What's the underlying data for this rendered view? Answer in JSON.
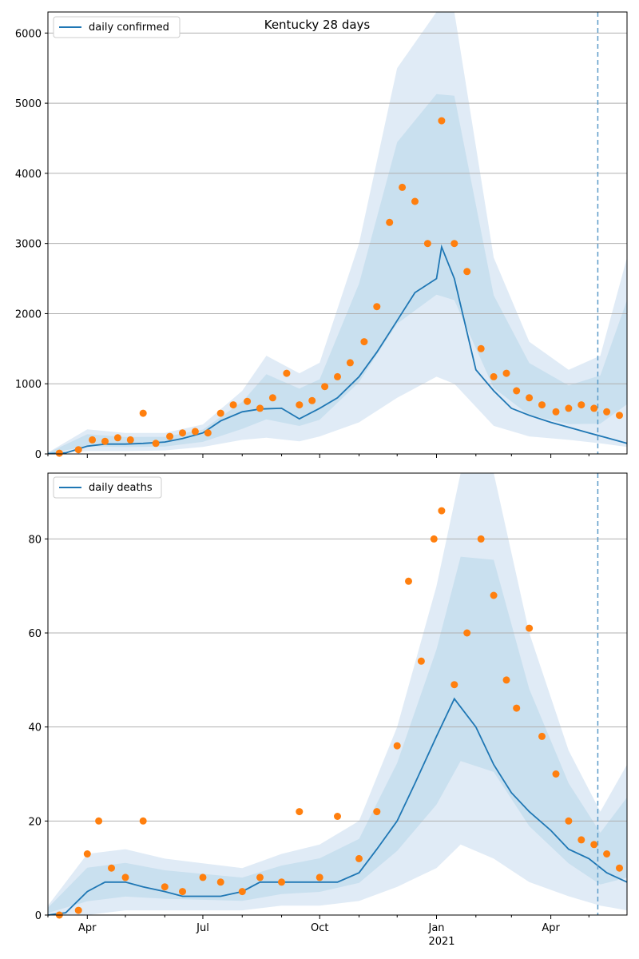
{
  "chart_data": [
    {
      "type": "line",
      "title": "Kentucky 28 days",
      "xlabel": "",
      "ylabel": "",
      "ylim": [
        0,
        6300
      ],
      "yticks": [
        0,
        1000,
        2000,
        3000,
        4000,
        5000,
        6000
      ],
      "grid": "y",
      "legend_position": "top-left",
      "x_range": [
        "2020-03-01",
        "2021-05-31"
      ],
      "forecast_start": "2021-05-08",
      "series": [
        {
          "name": "daily confirmed",
          "kind": "line",
          "color": "#1f77b4",
          "x": [
            "2020-03-01",
            "2020-03-15",
            "2020-04-01",
            "2020-04-15",
            "2020-05-01",
            "2020-05-15",
            "2020-06-01",
            "2020-06-15",
            "2020-07-01",
            "2020-07-15",
            "2020-08-01",
            "2020-08-15",
            "2020-09-01",
            "2020-09-15",
            "2020-10-01",
            "2020-10-15",
            "2020-11-01",
            "2020-11-15",
            "2020-12-01",
            "2020-12-15",
            "2021-01-01",
            "2021-01-05",
            "2021-01-15",
            "2021-02-01",
            "2021-02-15",
            "2021-03-01",
            "2021-03-15",
            "2021-04-01",
            "2021-04-15",
            "2021-05-01",
            "2021-05-15",
            "2021-05-31"
          ],
          "values": [
            5,
            15,
            110,
            140,
            140,
            150,
            170,
            220,
            300,
            470,
            600,
            640,
            650,
            500,
            650,
            800,
            1100,
            1450,
            1900,
            2300,
            2500,
            2950,
            2500,
            1200,
            900,
            650,
            550,
            450,
            380,
            300,
            230,
            150
          ]
        },
        {
          "name": "",
          "kind": "band",
          "color": "#c6dbef",
          "x": [
            "2020-03-01",
            "2020-04-01",
            "2020-05-01",
            "2020-06-01",
            "2020-07-01",
            "2020-08-01",
            "2020-08-20",
            "2020-09-15",
            "2020-10-01",
            "2020-11-01",
            "2020-12-01",
            "2021-01-01",
            "2021-01-15",
            "2021-02-15",
            "2021-03-15",
            "2021-04-15",
            "2021-05-10",
            "2021-05-31"
          ],
          "low": [
            0,
            40,
            40,
            50,
            100,
            200,
            230,
            180,
            250,
            450,
            800,
            1100,
            1000,
            400,
            250,
            200,
            150,
            100
          ],
          "high": [
            20,
            350,
            300,
            300,
            420,
            900,
            1400,
            1150,
            1300,
            3000,
            5500,
            6300,
            6300,
            2800,
            1600,
            1200,
            1400,
            2800
          ]
        }
      ],
      "observed": {
        "name": "",
        "color": "#ff7f0e",
        "x": [
          "2020-03-10",
          "2020-03-25",
          "2020-04-05",
          "2020-04-15",
          "2020-04-25",
          "2020-05-05",
          "2020-05-15",
          "2020-05-25",
          "2020-06-05",
          "2020-06-15",
          "2020-06-25",
          "2020-07-05",
          "2020-07-15",
          "2020-07-25",
          "2020-08-05",
          "2020-08-15",
          "2020-08-25",
          "2020-09-05",
          "2020-09-15",
          "2020-09-25",
          "2020-10-05",
          "2020-10-15",
          "2020-10-25",
          "2020-11-05",
          "2020-11-15",
          "2020-11-25",
          "2020-12-05",
          "2020-12-15",
          "2020-12-25",
          "2021-01-05",
          "2021-01-15",
          "2021-01-25",
          "2021-02-05",
          "2021-02-15",
          "2021-02-25",
          "2021-03-05",
          "2021-03-15",
          "2021-03-25",
          "2021-04-05",
          "2021-04-15",
          "2021-04-25",
          "2021-05-05",
          "2021-05-15",
          "2021-05-25"
        ],
        "values": [
          10,
          60,
          200,
          180,
          230,
          200,
          580,
          150,
          250,
          300,
          320,
          300,
          580,
          700,
          750,
          650,
          800,
          1150,
          700,
          760,
          960,
          1100,
          1300,
          1600,
          2100,
          3300,
          3800,
          3600,
          3000,
          4750,
          3000,
          2600,
          1500,
          1100,
          1150,
          900,
          800,
          700,
          600,
          650,
          700,
          650,
          600,
          550
        ]
      }
    },
    {
      "type": "line",
      "title": "",
      "xlabel": "",
      "ylabel": "",
      "ylim": [
        0,
        94
      ],
      "yticks": [
        0,
        20,
        40,
        60,
        80
      ],
      "grid": "y",
      "legend_position": "top-left",
      "x_range": [
        "2020-03-01",
        "2021-05-31"
      ],
      "xticks": [
        "Apr",
        "Jul",
        "Oct",
        "Jan",
        "Apr"
      ],
      "xtick_dates": [
        "2020-04-01",
        "2020-07-01",
        "2020-10-01",
        "2021-01-01",
        "2021-04-01"
      ],
      "year_label": "2021",
      "forecast_start": "2021-05-08",
      "series": [
        {
          "name": "daily deaths",
          "kind": "line",
          "color": "#1f77b4",
          "x": [
            "2020-03-01",
            "2020-03-15",
            "2020-04-01",
            "2020-04-15",
            "2020-05-01",
            "2020-05-15",
            "2020-06-01",
            "2020-06-15",
            "2020-07-01",
            "2020-07-15",
            "2020-08-01",
            "2020-08-15",
            "2020-09-01",
            "2020-09-15",
            "2020-10-01",
            "2020-10-15",
            "2020-11-01",
            "2020-11-15",
            "2020-12-01",
            "2020-12-15",
            "2021-01-01",
            "2021-01-15",
            "2021-02-01",
            "2021-02-15",
            "2021-03-01",
            "2021-03-15",
            "2021-04-01",
            "2021-04-15",
            "2021-05-01",
            "2021-05-15",
            "2021-05-31"
          ],
          "values": [
            0,
            0.5,
            5,
            7,
            7,
            6,
            5,
            4,
            4,
            4,
            5,
            7,
            7,
            7,
            7,
            7,
            9,
            14,
            20,
            28,
            38,
            46,
            40,
            32,
            26,
            22,
            18,
            14,
            12,
            9,
            7
          ]
        },
        {
          "name": "",
          "kind": "band",
          "color": "#c6dbef",
          "x": [
            "2020-03-01",
            "2020-04-01",
            "2020-05-01",
            "2020-06-01",
            "2020-07-01",
            "2020-08-01",
            "2020-09-01",
            "2020-10-01",
            "2020-11-01",
            "2020-12-01",
            "2021-01-01",
            "2021-01-20",
            "2021-02-15",
            "2021-03-15",
            "2021-04-15",
            "2021-05-10",
            "2021-05-31"
          ],
          "low": [
            0,
            0,
            1,
            1,
            1,
            1,
            2,
            2,
            3,
            6,
            10,
            15,
            12,
            7,
            4,
            2,
            1
          ],
          "high": [
            2,
            13,
            14,
            12,
            11,
            10,
            13,
            15,
            20,
            40,
            70,
            94,
            94,
            60,
            35,
            22,
            32
          ]
        }
      ],
      "observed": {
        "name": "",
        "color": "#ff7f0e",
        "x": [
          "2020-03-10",
          "2020-03-25",
          "2020-04-01",
          "2020-04-10",
          "2020-04-20",
          "2020-05-01",
          "2020-05-15",
          "2020-06-01",
          "2020-06-15",
          "2020-07-01",
          "2020-07-15",
          "2020-08-01",
          "2020-08-15",
          "2020-09-01",
          "2020-09-15",
          "2020-10-01",
          "2020-10-15",
          "2020-11-01",
          "2020-11-15",
          "2020-12-01",
          "2020-12-10",
          "2020-12-20",
          "2020-12-30",
          "2021-01-05",
          "2021-01-15",
          "2021-01-25",
          "2021-02-05",
          "2021-02-15",
          "2021-02-25",
          "2021-03-05",
          "2021-03-15",
          "2021-03-25",
          "2021-04-05",
          "2021-04-15",
          "2021-04-25",
          "2021-05-05",
          "2021-05-15",
          "2021-05-25"
        ],
        "values": [
          0,
          1,
          13,
          20,
          10,
          8,
          20,
          6,
          5,
          8,
          7,
          5,
          8,
          7,
          22,
          8,
          21,
          12,
          22,
          36,
          71,
          54,
          80,
          86,
          49,
          60,
          80,
          68,
          50,
          44,
          61,
          38,
          30,
          20,
          16,
          15,
          13,
          10
        ]
      }
    }
  ]
}
